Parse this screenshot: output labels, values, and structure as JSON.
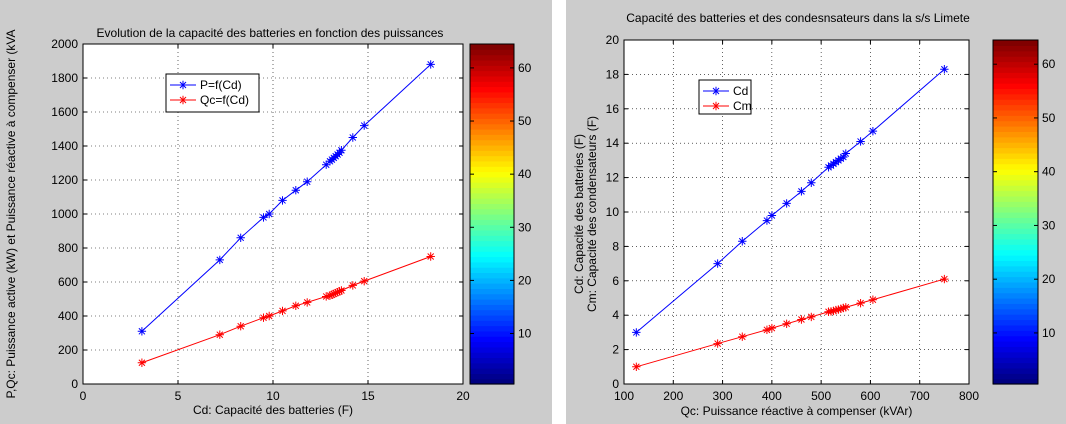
{
  "chart_data": [
    {
      "type": "line",
      "title": "Evolution de la capacité des batteries en fonction des puissances",
      "xlabel": "Cd: Capacité des batteries (F)",
      "ylabel": "P,Qc: Puissance active  (kW) et Puissance réactive à compenser (kVA",
      "xlim": [
        0,
        20
      ],
      "ylim": [
        0,
        2000
      ],
      "xticks": [
        0,
        5,
        10,
        15,
        20
      ],
      "yticks": [
        0,
        200,
        400,
        600,
        800,
        1000,
        1200,
        1400,
        1600,
        1800,
        2000
      ],
      "grid": true,
      "legend_position": "top-left",
      "series": [
        {
          "name": "P=f(Cd)",
          "color": "#0000ff",
          "marker": "*",
          "x": [
            3.1,
            7.2,
            8.3,
            9.5,
            9.8,
            10.5,
            11.2,
            11.8,
            12.8,
            13.0,
            13.1,
            13.2,
            13.3,
            13.4,
            13.5,
            13.6,
            14.2,
            14.8,
            18.3
          ],
          "y": [
            310,
            730,
            860,
            980,
            1000,
            1080,
            1140,
            1190,
            1290,
            1310,
            1320,
            1330,
            1340,
            1350,
            1360,
            1375,
            1450,
            1520,
            1880
          ]
        },
        {
          "name": "Qc=f(Cd)",
          "color": "#ff0000",
          "marker": "*",
          "x": [
            3.1,
            7.2,
            8.3,
            9.5,
            9.8,
            10.5,
            11.2,
            11.8,
            12.8,
            13.0,
            13.1,
            13.2,
            13.3,
            13.4,
            13.5,
            13.6,
            14.2,
            14.8,
            18.3
          ],
          "y": [
            125,
            290,
            340,
            390,
            400,
            430,
            460,
            480,
            515,
            520,
            525,
            530,
            535,
            540,
            545,
            550,
            580,
            605,
            750
          ]
        }
      ],
      "colorbar": {
        "min": 1,
        "max": 64,
        "ticks": [
          10,
          20,
          30,
          40,
          50,
          60
        ]
      }
    },
    {
      "type": "line",
      "title": "Capacité des batteries et des condesnsateurs dans la s/s Limete",
      "xlabel": "Qc: Puissance réactive à compenser (kVAr)",
      "ylabel": "Cd: Capacité des batteries (F)",
      "ylabel2": "Cm: Capacité des condensateurs (F)",
      "xlim": [
        100,
        800
      ],
      "ylim": [
        0,
        20
      ],
      "xticks": [
        100,
        200,
        300,
        400,
        500,
        600,
        700,
        800
      ],
      "yticks": [
        0,
        2,
        4,
        6,
        8,
        10,
        12,
        14,
        16,
        18,
        20
      ],
      "grid": true,
      "legend_position": "top-left",
      "series": [
        {
          "name": "Cd",
          "color": "#0000ff",
          "marker": "*",
          "x": [
            125,
            290,
            340,
            390,
            400,
            430,
            460,
            480,
            515,
            520,
            525,
            530,
            535,
            540,
            545,
            550,
            580,
            605,
            750
          ],
          "y": [
            3.0,
            7.0,
            8.3,
            9.5,
            9.8,
            10.5,
            11.2,
            11.7,
            12.6,
            12.7,
            12.8,
            12.9,
            13.0,
            13.1,
            13.2,
            13.4,
            14.1,
            14.7,
            18.3
          ]
        },
        {
          "name": "Cm",
          "color": "#ff0000",
          "marker": "*",
          "x": [
            125,
            290,
            340,
            390,
            400,
            430,
            460,
            480,
            515,
            520,
            525,
            530,
            535,
            540,
            545,
            550,
            580,
            605,
            750
          ],
          "y": [
            1.0,
            2.35,
            2.75,
            3.15,
            3.25,
            3.5,
            3.75,
            3.9,
            4.2,
            4.22,
            4.25,
            4.3,
            4.33,
            4.37,
            4.42,
            4.46,
            4.7,
            4.9,
            6.1
          ]
        }
      ],
      "colorbar": {
        "min": 1,
        "max": 64,
        "ticks": [
          10,
          20,
          30,
          40,
          50,
          60
        ]
      }
    }
  ]
}
